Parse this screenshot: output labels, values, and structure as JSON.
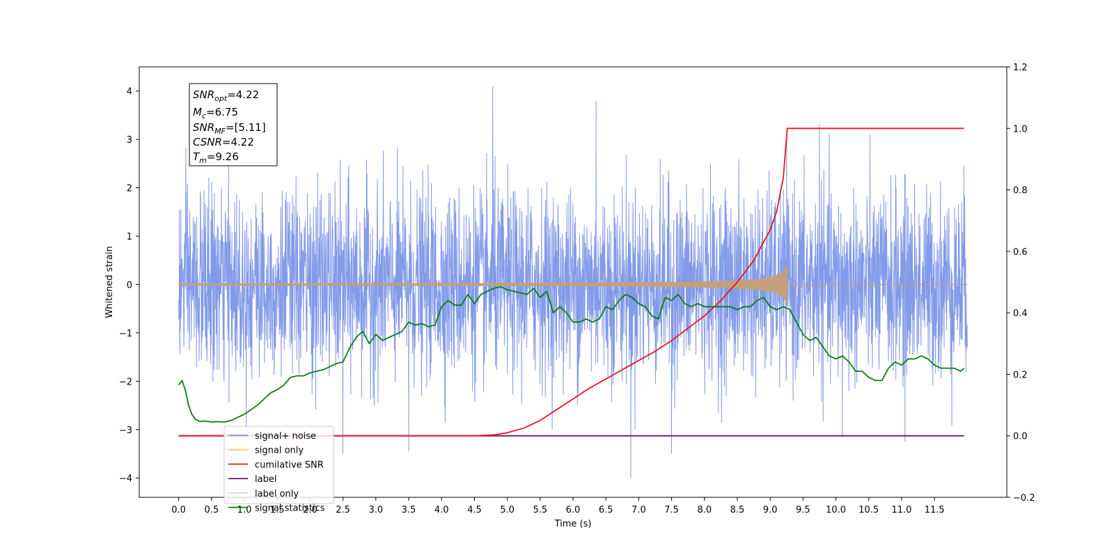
{
  "chart_data": {
    "type": "line",
    "title": "",
    "xlabel": "Time (s)",
    "ylabel": "Whitened strain",
    "xlim": [
      -0.6,
      12.6
    ],
    "ylim": [
      -4.4,
      4.5
    ],
    "y2lim": [
      -0.2,
      1.2
    ],
    "grid": false,
    "x_ticks": [
      0.0,
      0.5,
      1.0,
      1.5,
      2.0,
      2.5,
      3.0,
      3.5,
      4.0,
      4.5,
      5.0,
      5.5,
      6.0,
      6.5,
      7.0,
      7.5,
      8.0,
      8.5,
      9.0,
      9.5,
      10.0,
      10.5,
      11.0,
      11.5
    ],
    "x_tick_labels": [
      "0.0",
      "0.5",
      "1.0",
      "1.5",
      "2.0",
      "2.5",
      "3.0",
      "3.5",
      "4.0",
      "4.5",
      "5.0",
      "5.5",
      "6.0",
      "6.5",
      "7.0",
      "7.5",
      "8.0",
      "8.5",
      "9.0",
      "9.5",
      "10.0",
      "10.5",
      "11.0",
      "11.5"
    ],
    "y_ticks": [
      -4,
      -3,
      -2,
      -1,
      0,
      1,
      2,
      3,
      4
    ],
    "y_tick_labels": [
      "−4",
      "−3",
      "−2",
      "−1",
      "0",
      "1",
      "2",
      "3",
      "4"
    ],
    "y2_ticks": [
      -0.2,
      0.0,
      0.2,
      0.4,
      0.6,
      0.8,
      1.0,
      1.2
    ],
    "y2_tick_labels": [
      "−0.2",
      "0.0",
      "0.2",
      "0.4",
      "0.6",
      "0.8",
      "1.0",
      "1.2"
    ],
    "legend_position": "lower-left",
    "stats_box": {
      "snr_opt": {
        "base": "SNR",
        "sub": "opt",
        "value": "=4.22"
      },
      "mc": {
        "base": "M",
        "sub": "c",
        "value": "=6.75"
      },
      "snr_mf": {
        "base": "SNR",
        "sub": "MF",
        "value": "=[5.11]"
      },
      "csnr": {
        "base": "CSNR",
        "sub": "",
        "value": "=4.22"
      },
      "tm": {
        "base": "T",
        "sub": "m",
        "value": "=9.26"
      }
    },
    "series": [
      {
        "name": "signal+ noise",
        "axis": "left",
        "color": "#7b95e8",
        "style": "noise",
        "x_range": [
          0.0,
          12.0
        ],
        "envelope_typical": [
          -2.3,
          2.4
        ],
        "peak_spikes": [
          [
            4.78,
            4.1
          ],
          [
            6.35,
            3.8
          ],
          [
            9.75,
            3.3
          ],
          [
            6.88,
            -4.0
          ],
          [
            7.5,
            -3.5
          ],
          [
            2.5,
            -3.5
          ],
          [
            3.5,
            -3.45
          ],
          [
            11.05,
            -3.25
          ],
          [
            10.1,
            -3.15
          ]
        ]
      },
      {
        "name": "signal only",
        "axis": "left",
        "color": "#c4a07a",
        "style": "chirp",
        "x_range": [
          0.0,
          12.0
        ],
        "merger_time": 9.26,
        "peak_amplitude": 0.45
      },
      {
        "name": "cumilative SNR",
        "axis": "right",
        "color": "#e8161c",
        "style": "line",
        "x": [
          0.0,
          4.5,
          4.8,
          5.0,
          5.25,
          5.5,
          5.75,
          6.0,
          6.25,
          6.5,
          6.75,
          7.0,
          7.25,
          7.5,
          7.75,
          8.0,
          8.25,
          8.5,
          8.75,
          9.0,
          9.1,
          9.2,
          9.26,
          11.5,
          11.95
        ],
        "y": [
          0.0,
          0.0,
          0.003,
          0.01,
          0.025,
          0.05,
          0.085,
          0.12,
          0.155,
          0.185,
          0.215,
          0.245,
          0.275,
          0.31,
          0.35,
          0.39,
          0.44,
          0.5,
          0.57,
          0.67,
          0.73,
          0.84,
          1.0,
          1.0,
          1.0
        ]
      },
      {
        "name": "label",
        "axis": "right",
        "color": "#6a1178",
        "style": "line",
        "x": [
          0.0,
          11.95
        ],
        "y": [
          0.0,
          0.0
        ]
      },
      {
        "name": "label only",
        "axis": "right",
        "color": "#d9d9d9",
        "style": "hidden",
        "x": [],
        "y": []
      },
      {
        "name": "signal statistics",
        "axis": "right",
        "color": "#0a7d0a",
        "style": "line",
        "x": [
          0.0,
          0.05,
          0.1,
          0.15,
          0.2,
          0.25,
          0.3,
          0.35,
          0.4,
          0.5,
          0.6,
          0.7,
          0.8,
          0.9,
          1.0,
          1.1,
          1.2,
          1.3,
          1.4,
          1.5,
          1.6,
          1.7,
          1.8,
          1.9,
          2.0,
          2.1,
          2.2,
          2.3,
          2.4,
          2.5,
          2.6,
          2.7,
          2.8,
          2.9,
          3.0,
          3.1,
          3.2,
          3.3,
          3.4,
          3.5,
          3.6,
          3.7,
          3.8,
          3.9,
          4.0,
          4.1,
          4.2,
          4.3,
          4.4,
          4.5,
          4.6,
          4.7,
          4.8,
          4.9,
          5.0,
          5.1,
          5.2,
          5.3,
          5.4,
          5.5,
          5.6,
          5.7,
          5.8,
          5.9,
          6.0,
          6.1,
          6.2,
          6.3,
          6.4,
          6.5,
          6.6,
          6.7,
          6.8,
          6.9,
          7.0,
          7.1,
          7.2,
          7.3,
          7.4,
          7.5,
          7.6,
          7.7,
          7.8,
          7.9,
          8.0,
          8.1,
          8.2,
          8.3,
          8.4,
          8.5,
          8.6,
          8.7,
          8.8,
          8.9,
          9.0,
          9.1,
          9.2,
          9.3,
          9.4,
          9.5,
          9.6,
          9.7,
          9.8,
          9.9,
          10.0,
          10.1,
          10.2,
          10.3,
          10.4,
          10.5,
          10.6,
          10.7,
          10.8,
          10.9,
          11.0,
          11.1,
          11.2,
          11.3,
          11.4,
          11.5,
          11.6,
          11.7,
          11.8,
          11.9,
          11.95
        ],
        "y": [
          0.165,
          0.18,
          0.15,
          0.1,
          0.07,
          0.055,
          0.048,
          0.047,
          0.048,
          0.045,
          0.046,
          0.045,
          0.05,
          0.06,
          0.07,
          0.085,
          0.1,
          0.12,
          0.14,
          0.15,
          0.165,
          0.19,
          0.195,
          0.195,
          0.205,
          0.21,
          0.215,
          0.225,
          0.235,
          0.24,
          0.285,
          0.32,
          0.34,
          0.3,
          0.33,
          0.31,
          0.32,
          0.33,
          0.34,
          0.37,
          0.36,
          0.365,
          0.355,
          0.36,
          0.42,
          0.44,
          0.425,
          0.425,
          0.46,
          0.43,
          0.46,
          0.47,
          0.48,
          0.485,
          0.475,
          0.47,
          0.465,
          0.46,
          0.48,
          0.45,
          0.47,
          0.4,
          0.42,
          0.4,
          0.37,
          0.37,
          0.38,
          0.37,
          0.38,
          0.42,
          0.41,
          0.44,
          0.46,
          0.45,
          0.43,
          0.42,
          0.39,
          0.38,
          0.45,
          0.44,
          0.46,
          0.43,
          0.42,
          0.43,
          0.42,
          0.42,
          0.42,
          0.42,
          0.42,
          0.41,
          0.42,
          0.42,
          0.44,
          0.45,
          0.42,
          0.41,
          0.42,
          0.41,
          0.37,
          0.33,
          0.31,
          0.32,
          0.29,
          0.26,
          0.25,
          0.26,
          0.24,
          0.21,
          0.21,
          0.19,
          0.18,
          0.18,
          0.22,
          0.24,
          0.23,
          0.25,
          0.25,
          0.26,
          0.25,
          0.23,
          0.22,
          0.22,
          0.22,
          0.21,
          0.22
        ]
      }
    ]
  }
}
